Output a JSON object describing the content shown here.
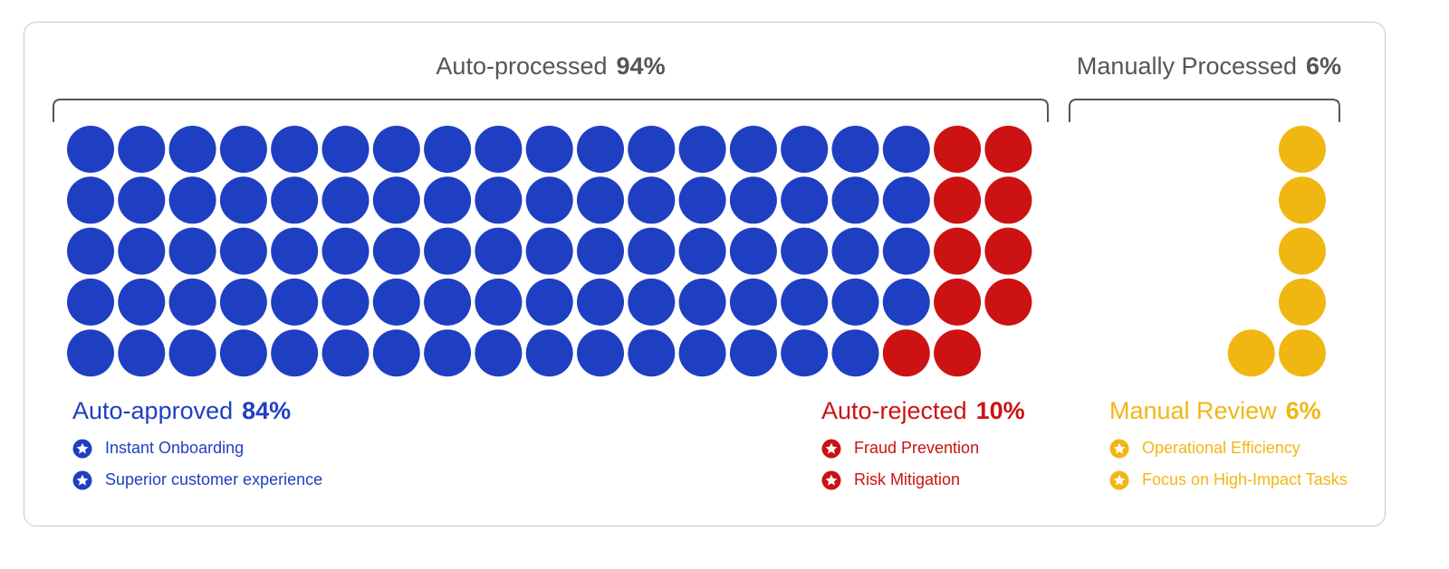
{
  "colors": {
    "approved": "#1f3fc2",
    "rejected": "#cc1212",
    "review": "#f0b713",
    "bracket": "#555555",
    "heading": "#555555"
  },
  "groups": {
    "auto": {
      "label": "Auto-processed",
      "pct": "94%"
    },
    "manual": {
      "label": "Manually Processed",
      "pct": "6%"
    }
  },
  "legend": {
    "approved": {
      "label": "Auto-approved",
      "pct": "84%",
      "items": [
        "Instant Onboarding",
        "Superior customer experience"
      ],
      "icon": "star-badge-icon"
    },
    "rejected": {
      "label": "Auto-rejected",
      "pct": "10%",
      "items": [
        "Fraud Prevention",
        "Risk Mitigation"
      ],
      "icon": "star-badge-icon"
    },
    "review": {
      "label": "Manual Review",
      "pct": "6%",
      "items": [
        "Operational Efficiency",
        "Focus on High-Impact Tasks"
      ],
      "icon": "star-badge-icon"
    }
  },
  "chart_data": {
    "type": "waffle",
    "total_units": 100,
    "rows": 5,
    "categories": [
      "Auto-approved",
      "Auto-rejected",
      "Manual Review"
    ],
    "values": [
      84,
      10,
      6
    ],
    "groups": [
      {
        "name": "Auto-processed",
        "value": 94,
        "members": [
          "Auto-approved",
          "Auto-rejected"
        ]
      },
      {
        "name": "Manually Processed",
        "value": 6,
        "members": [
          "Manual Review"
        ]
      }
    ]
  }
}
